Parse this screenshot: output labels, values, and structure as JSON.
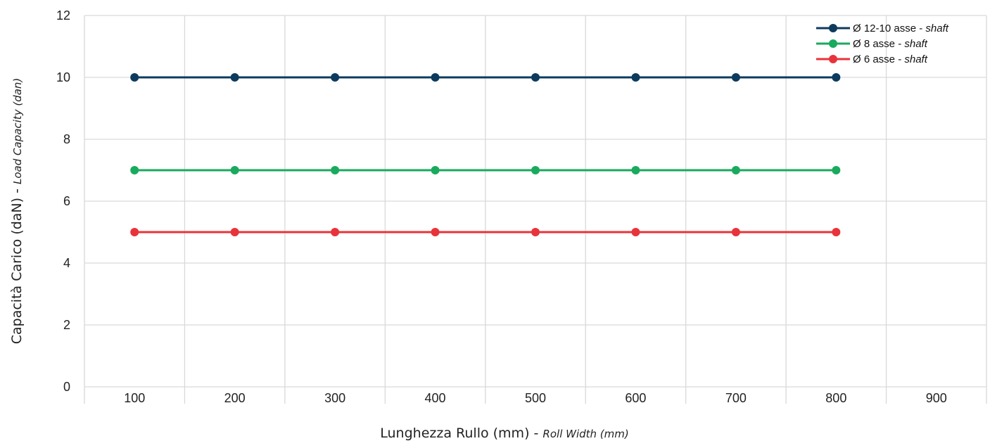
{
  "chart_data": {
    "type": "line",
    "x": [
      100,
      200,
      300,
      400,
      500,
      600,
      700,
      800
    ],
    "categories": [
      "100",
      "200",
      "300",
      "400",
      "500",
      "600",
      "700",
      "800",
      "900"
    ],
    "series": [
      {
        "name_main": "Ø 12-10 asse - ",
        "name_italic": "shaft",
        "color": "#0d3b5e",
        "values": [
          10,
          10,
          10,
          10,
          10,
          10,
          10,
          10
        ]
      },
      {
        "name_main": "Ø        8 asse - ",
        "name_italic": "shaft",
        "color": "#1aaa5e",
        "values": [
          7,
          7,
          7,
          7,
          7,
          7,
          7,
          7
        ]
      },
      {
        "name_main": "Ø        6 asse - ",
        "name_italic": "shaft",
        "color": "#e8333a",
        "values": [
          5,
          5,
          5,
          5,
          5,
          5,
          5,
          5
        ]
      }
    ],
    "ylim": [
      0,
      12
    ],
    "yticks": [
      "0",
      "2",
      "4",
      "6",
      "8",
      "10",
      "12"
    ],
    "xlabel_main": "Lunghezza Rullo (mm) - ",
    "xlabel_italic": "Roll Width (mm)",
    "ylabel_main": "Capacità Carico (daN) - ",
    "ylabel_italic": "Load Capacity (dan)",
    "grid": true,
    "legend_position": "top-right"
  }
}
